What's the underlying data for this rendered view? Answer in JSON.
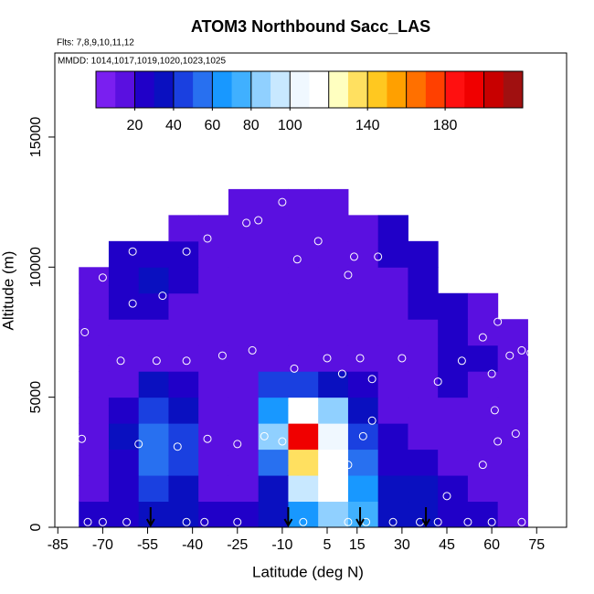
{
  "chart_data": {
    "type": "heatmap",
    "title": "ATOM3 Northbound Sacc_LAS",
    "subtitle": "Flts: 7,8,9,10,11,12",
    "annotation": "MMDD: 1014,1017,1019,1020,1023,1025",
    "xlabel": "Latitude (deg N)",
    "ylabel": "Altitude (m)",
    "xlim": [
      -86,
      85
    ],
    "ylim": [
      0,
      18230
    ],
    "xticks": [
      -85,
      -70,
      -55,
      -40,
      -25,
      -10,
      5,
      15,
      30,
      45,
      60,
      75
    ],
    "yticks": [
      0,
      5000,
      10000,
      15000
    ],
    "x_edges": [
      -78,
      -68,
      -58,
      -48,
      -38,
      -28,
      -18,
      -8,
      2,
      12,
      22,
      32,
      42,
      52,
      62,
      72
    ],
    "y_edges": [
      0,
      1000,
      2000,
      3000,
      4000,
      5000,
      6000,
      7000,
      8000,
      9000,
      10000,
      11000,
      12000,
      13000
    ],
    "z": [
      [
        25,
        25,
        30,
        30,
        20,
        25,
        35,
        60,
        80,
        70,
        30,
        30,
        25,
        20,
        15
      ],
      [
        12,
        20,
        40,
        35,
        15,
        15,
        30,
        90,
        110,
        60,
        30,
        30,
        25,
        15,
        12
      ],
      [
        12,
        25,
        50,
        45,
        15,
        12,
        50,
        130,
        110,
        50,
        25,
        20,
        15,
        12,
        10
      ],
      [
        10,
        30,
        55,
        45,
        12,
        10,
        80,
        190,
        100,
        40,
        20,
        15,
        12,
        12,
        10
      ],
      [
        10,
        25,
        45,
        35,
        10,
        10,
        60,
        110,
        80,
        30,
        15,
        12,
        15,
        12,
        10
      ],
      [
        10,
        15,
        30,
        25,
        10,
        10,
        40,
        40,
        35,
        20,
        15,
        15,
        20,
        15,
        10
      ],
      [
        10,
        12,
        15,
        12,
        10,
        10,
        15,
        15,
        12,
        12,
        12,
        15,
        25,
        20,
        12
      ],
      [
        10,
        15,
        15,
        12,
        10,
        10,
        12,
        12,
        10,
        12,
        12,
        15,
        25,
        15,
        12
      ],
      [
        10,
        20,
        25,
        15,
        10,
        10,
        12,
        12,
        10,
        12,
        12,
        20,
        25,
        12,
        null
      ],
      [
        12,
        25,
        30,
        20,
        12,
        10,
        12,
        12,
        12,
        15,
        15,
        20,
        null,
        null,
        null
      ],
      [
        null,
        20,
        25,
        20,
        15,
        12,
        15,
        15,
        12,
        15,
        20,
        25,
        null,
        null,
        null
      ],
      [
        null,
        null,
        null,
        15,
        12,
        12,
        12,
        12,
        12,
        15,
        20,
        null,
        null,
        null,
        null
      ],
      [
        null,
        null,
        null,
        null,
        null,
        15,
        15,
        12,
        15,
        null,
        null,
        null,
        null,
        null,
        null
      ]
    ],
    "colorbar": {
      "lim": [
        0,
        220
      ],
      "ticks": [
        20,
        40,
        60,
        80,
        100,
        140,
        180
      ],
      "colors": [
        "#7a1ff0",
        "#5a10e0",
        "#2000c8",
        "#0a10c0",
        "#1a40e0",
        "#2870f0",
        "#1898ff",
        "#40b0ff",
        "#90d0ff",
        "#c8e8ff",
        "#f0f8ff",
        "#ffffff",
        "#ffffc0",
        "#ffe060",
        "#ffc820",
        "#ffa000",
        "#ff7000",
        "#ff4000",
        "#ff1010",
        "#f00000",
        "#c80000",
        "#a01010"
      ]
    },
    "points": {
      "lat": [
        -75,
        -70,
        -62,
        -42,
        -36,
        -25,
        -3,
        12,
        18,
        27,
        36,
        42,
        52,
        60,
        70,
        -77,
        -58,
        -45,
        -35,
        -25,
        -16,
        -10,
        12,
        17,
        20,
        45,
        57,
        62,
        68,
        75,
        -52,
        -42,
        -30,
        -20,
        -6,
        5,
        10,
        16,
        20,
        30,
        42,
        50,
        60,
        61,
        66,
        70,
        73,
        -64,
        -76,
        -60,
        -50,
        -70,
        -60,
        -42,
        -35,
        -18,
        -22,
        -5,
        2,
        12,
        14,
        22,
        43,
        62,
        57,
        70,
        -10
      ],
      "alt": [
        200,
        200,
        200,
        200,
        200,
        200,
        200,
        200,
        200,
        200,
        200,
        200,
        200,
        200,
        200,
        3400,
        3200,
        3100,
        3400,
        3200,
        3500,
        3300,
        2400,
        3500,
        4100,
        1200,
        2400,
        3300,
        3600,
        3000,
        6400,
        6400,
        6600,
        6800,
        6100,
        6500,
        5900,
        6500,
        5700,
        6500,
        5600,
        6400,
        5900,
        4500,
        6600,
        6800,
        6700,
        6400,
        7500,
        8600,
        8900,
        9600,
        10600,
        10600,
        11100,
        11800,
        11700,
        10300,
        11000,
        9700,
        10400,
        10400,
        11500,
        7900,
        7300,
        8400,
        12500
      ]
    },
    "arrows_lat": [
      -54,
      -8,
      16,
      38
    ]
  }
}
